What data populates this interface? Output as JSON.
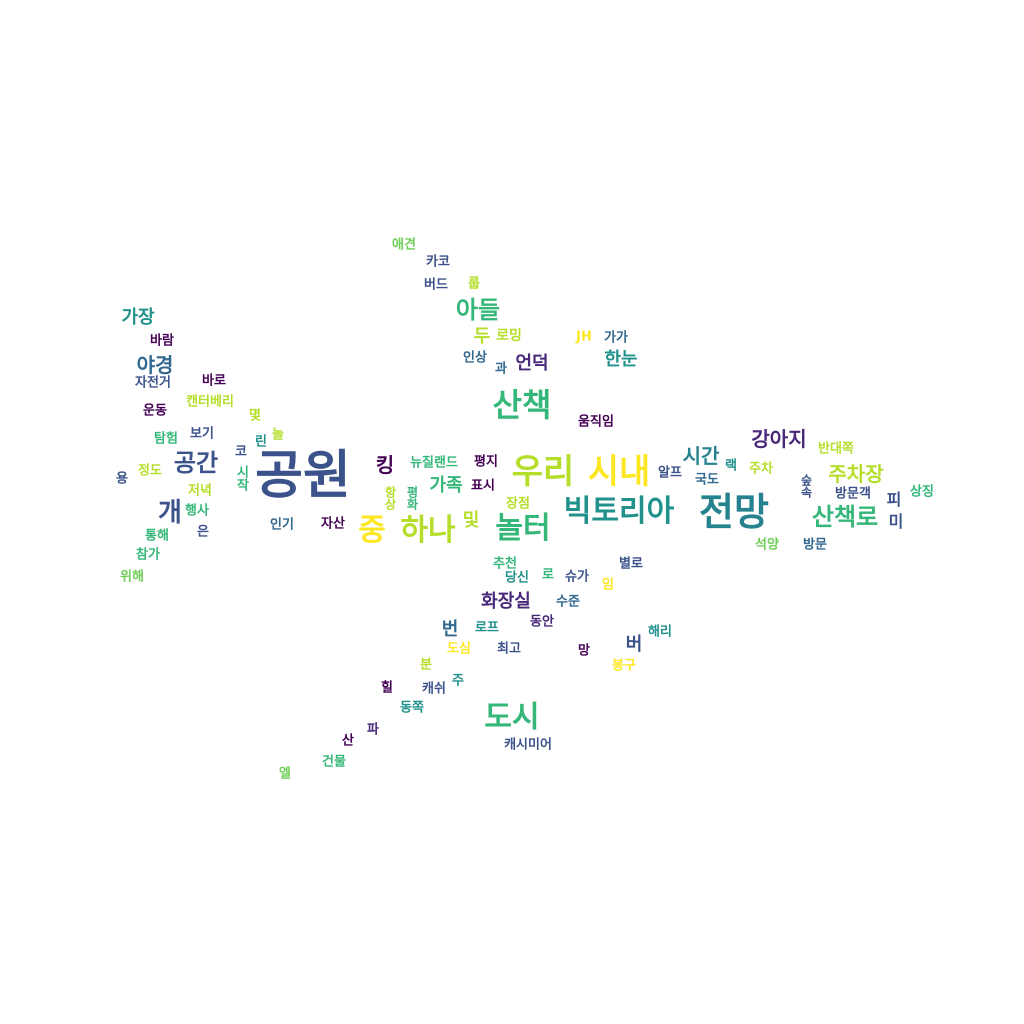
{
  "palette": {
    "indigo": "#3b528b",
    "purple": "#482878",
    "dark": "#440154",
    "blue": "#31688e",
    "teal": "#21918c",
    "sea": "#26828e",
    "green": "#35b779",
    "lime": "#6ece58",
    "yellow": "#b5de2b",
    "gold": "#fde725"
  },
  "words": [
    {
      "text": "공원",
      "color": "indigo"
    },
    {
      "text": "우리",
      "color": "yellow"
    },
    {
      "text": "시내",
      "color": "gold"
    },
    {
      "text": "전망",
      "color": "sea"
    },
    {
      "text": "빅토리아",
      "color": "teal"
    },
    {
      "text": "산책",
      "color": "green"
    },
    {
      "text": "하나",
      "color": "yellow"
    },
    {
      "text": "중",
      "color": "gold"
    },
    {
      "text": "놀터",
      "color": "green"
    },
    {
      "text": "도시",
      "color": "green"
    },
    {
      "text": "산책로",
      "color": "green"
    },
    {
      "text": "아들",
      "color": "green"
    },
    {
      "text": "공간",
      "color": "indigo"
    },
    {
      "text": "개",
      "color": "indigo"
    },
    {
      "text": "주차장",
      "color": "yellow"
    },
    {
      "text": "강아지",
      "color": "purple"
    },
    {
      "text": "시간",
      "color": "sea"
    },
    {
      "text": "야경",
      "color": "blue"
    },
    {
      "text": "가장",
      "color": "teal"
    },
    {
      "text": "화장실",
      "color": "purple"
    },
    {
      "text": "한눈",
      "color": "teal"
    },
    {
      "text": "언덕",
      "color": "purple"
    },
    {
      "text": "가족",
      "color": "green"
    },
    {
      "text": "킹",
      "color": "dark"
    },
    {
      "text": "및",
      "color": "yellow"
    },
    {
      "text": "두",
      "color": "yellow"
    },
    {
      "text": "로밍",
      "color": "yellow"
    },
    {
      "text": "번",
      "color": "blue"
    },
    {
      "text": "버",
      "color": "indigo"
    },
    {
      "text": "뉴질랜드",
      "color": "green"
    },
    {
      "text": "캔터베리",
      "color": "yellow"
    },
    {
      "text": "애견",
      "color": "lime"
    },
    {
      "text": "카코",
      "color": "indigo"
    },
    {
      "text": "버드",
      "color": "indigo"
    },
    {
      "text": "룹",
      "color": "yellow"
    },
    {
      "text": "바람",
      "color": "dark"
    },
    {
      "text": "자전거",
      "color": "indigo"
    },
    {
      "text": "바로",
      "color": "dark"
    },
    {
      "text": "운동",
      "color": "dark"
    },
    {
      "text": "탐험",
      "color": "green"
    },
    {
      "text": "보기",
      "color": "indigo"
    },
    {
      "text": "몇",
      "color": "yellow"
    },
    {
      "text": "코",
      "color": "indigo"
    },
    {
      "text": "린",
      "color": "teal"
    },
    {
      "text": "놀",
      "color": "yellow"
    },
    {
      "text": "시작",
      "color": "green",
      "vertical": true
    },
    {
      "text": "용",
      "color": "indigo"
    },
    {
      "text": "정도",
      "color": "yellow"
    },
    {
      "text": "저녁",
      "color": "yellow"
    },
    {
      "text": "행사",
      "color": "green"
    },
    {
      "text": "통해",
      "color": "green"
    },
    {
      "text": "은",
      "color": "indigo"
    },
    {
      "text": "참가",
      "color": "green"
    },
    {
      "text": "위해",
      "color": "lime"
    },
    {
      "text": "인기",
      "color": "blue"
    },
    {
      "text": "자산",
      "color": "dark"
    },
    {
      "text": "항상",
      "color": "yellow",
      "vertical": true
    },
    {
      "text": "평화",
      "color": "green",
      "vertical": true
    },
    {
      "text": "평지",
      "color": "dark"
    },
    {
      "text": "표시",
      "color": "dark"
    },
    {
      "text": "장점",
      "color": "yellow"
    },
    {
      "text": "인상",
      "color": "blue"
    },
    {
      "text": "과",
      "color": "blue"
    },
    {
      "text": "JH",
      "color": "gold"
    },
    {
      "text": "가가",
      "color": "blue"
    },
    {
      "text": "움직임",
      "color": "dark"
    },
    {
      "text": "알프",
      "color": "indigo"
    },
    {
      "text": "랙",
      "color": "teal"
    },
    {
      "text": "국도",
      "color": "blue"
    },
    {
      "text": "주차",
      "color": "yellow"
    },
    {
      "text": "반대쪽",
      "color": "yellow"
    },
    {
      "text": "숲속",
      "color": "indigo",
      "vertical": true
    },
    {
      "text": "방문객",
      "color": "indigo"
    },
    {
      "text": "피",
      "color": "indigo"
    },
    {
      "text": "상징",
      "color": "green"
    },
    {
      "text": "미",
      "color": "indigo"
    },
    {
      "text": "석양",
      "color": "lime"
    },
    {
      "text": "방문",
      "color": "blue"
    },
    {
      "text": "추천",
      "color": "green"
    },
    {
      "text": "당신",
      "color": "teal"
    },
    {
      "text": "로",
      "color": "green"
    },
    {
      "text": "슈가",
      "color": "indigo"
    },
    {
      "text": "임",
      "color": "gold"
    },
    {
      "text": "별로",
      "color": "indigo"
    },
    {
      "text": "수준",
      "color": "blue"
    },
    {
      "text": "로프",
      "color": "teal"
    },
    {
      "text": "동안",
      "color": "purple"
    },
    {
      "text": "해리",
      "color": "teal"
    },
    {
      "text": "도심",
      "color": "gold"
    },
    {
      "text": "최고",
      "color": "indigo"
    },
    {
      "text": "망",
      "color": "dark"
    },
    {
      "text": "봉구",
      "color": "gold"
    },
    {
      "text": "분",
      "color": "yellow"
    },
    {
      "text": "힐",
      "color": "dark"
    },
    {
      "text": "캐쉬",
      "color": "indigo"
    },
    {
      "text": "주",
      "color": "teal"
    },
    {
      "text": "동쪽",
      "color": "teal"
    },
    {
      "text": "캐시미어",
      "color": "indigo"
    },
    {
      "text": "산",
      "color": "dark"
    },
    {
      "text": "파",
      "color": "purple"
    },
    {
      "text": "건물",
      "color": "green"
    },
    {
      "text": "엘",
      "color": "lime"
    }
  ]
}
